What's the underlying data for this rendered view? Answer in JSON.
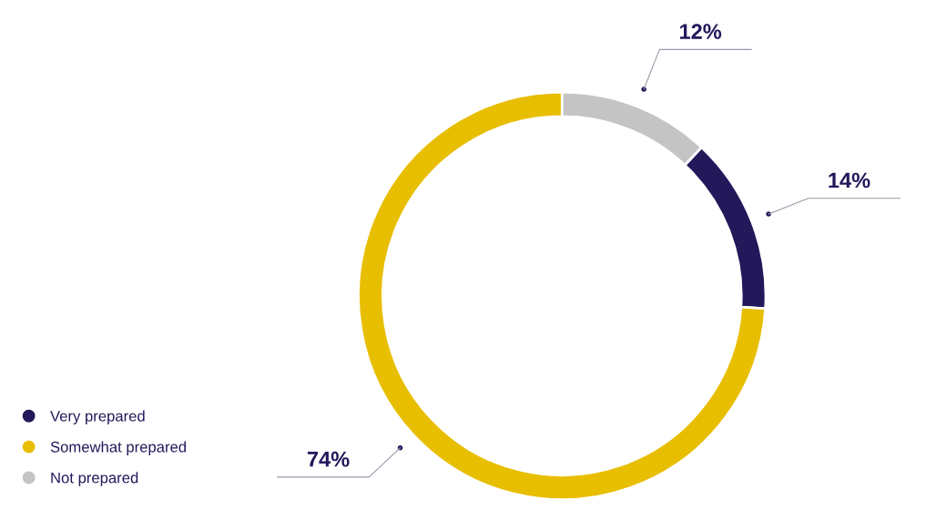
{
  "chart_data": {
    "type": "donut",
    "categories": [
      "Very prepared",
      "Somewhat prepared",
      "Not prepared"
    ],
    "values": [
      14,
      74,
      12
    ],
    "colors": [
      "#23185a",
      "#e8be00",
      "#c4c4c4"
    ],
    "value_labels": [
      "14%",
      "74%",
      "12%"
    ],
    "legend": "bottom left"
  }
}
